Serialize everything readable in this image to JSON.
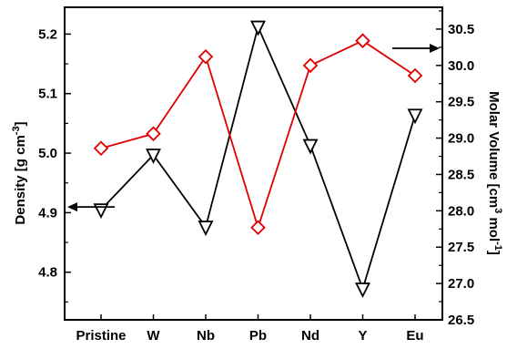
{
  "chart_data": {
    "type": "line",
    "categories": [
      "Pristine",
      "W",
      "Nb",
      "Pb",
      "Nd",
      "Y",
      "Eu"
    ],
    "series": [
      {
        "values": [
          4.905,
          4.997,
          4.876,
          5.212,
          5.013,
          4.772,
          5.064
        ],
        "color": "#000000",
        "marker": "triangle-down",
        "axis": "left"
      },
      {
        "values": [
          28.86,
          29.06,
          30.12,
          27.77,
          30.0,
          30.34,
          29.86
        ],
        "color": "#e00000",
        "marker": "diamond",
        "axis": "right"
      }
    ],
    "left_axis": {
      "label_text": "Density [g cm",
      "label_sup": "-3",
      "label_close": "]",
      "range": [
        4.72,
        5.245
      ],
      "ticks": [
        4.8,
        4.9,
        5.0,
        5.1,
        5.2
      ],
      "tick_labels": [
        "4.8",
        "4.9",
        "5.0",
        "5.1",
        "5.2"
      ]
    },
    "right_axis": {
      "label_text": "Molar Volume [cm",
      "label_sup1": "3",
      "label_mid": " mol",
      "label_sup2": "-1",
      "label_close": "]",
      "range": [
        26.5,
        30.8
      ],
      "ticks": [
        26.5,
        27.0,
        27.5,
        28.0,
        28.5,
        29.0,
        29.5,
        30.0,
        30.5
      ],
      "tick_labels": [
        "26.5",
        "27.0",
        "27.5",
        "28.0",
        "28.5",
        "29.0",
        "29.5",
        "30.0",
        "30.5"
      ]
    },
    "grid": false,
    "legend": "none",
    "annotations": [
      {
        "type": "arrow",
        "direction": "left",
        "points_to": "left-axis",
        "near_series": 0
      },
      {
        "type": "arrow",
        "direction": "right",
        "points_to": "right-axis",
        "near_series": 1
      }
    ]
  }
}
